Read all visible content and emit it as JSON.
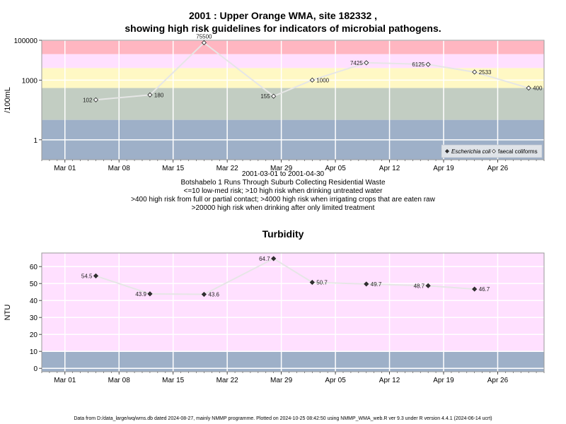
{
  "header": {
    "title_line1": "2001 : Upper Orange WMA, site 182332 ,",
    "title_line2": "showing high risk guidelines for indicators of microbial pathogens."
  },
  "micro_notes": {
    "date_range": "2001-03-01 to 2001-04-30",
    "site_desc": "Botshabelo 1 Runs Through Suburb Collecting Residential Waste",
    "line1": "<=10 low-med risk; >10 high risk when drinking untreated water",
    "line2": ">400 high risk from full or partial contact; >4000 high risk when irrigating crops that are eaten raw",
    "line3": ">20000 high risk when drinking after only limited treatment"
  },
  "turbidity": {
    "title": "Turbidity"
  },
  "footer": {
    "text": "Data from D:/data_large/wq/wms.db dated 2024-08-27, mainly NMMP programme. Plotted on 2024-10-25 08:42:50 using NMMP_WMA_web.R ver 9.3 under R version 4.4.1 (2024-06-14 ucrt)"
  },
  "colors": {
    "band_red": "#ffb6c1",
    "band_pink": "#ffe0ff",
    "band_yellow": "#fff8c4",
    "band_green": "#c2cdc2",
    "band_blue": "#9eb0c8",
    "line": "#e6e6e6"
  },
  "chart_data": [
    {
      "type": "line",
      "scale": "log",
      "ylabel": "/100mL",
      "ylim": [
        0.1,
        100000
      ],
      "yticks": [
        1,
        1000,
        100000
      ],
      "ytick_labels": [
        "1",
        "1000",
        "100000"
      ],
      "xlim": [
        "2001-02-26",
        "2001-05-02"
      ],
      "xticks": [
        "2001-03-01",
        "2001-03-08",
        "2001-03-15",
        "2001-03-22",
        "2001-03-29",
        "2001-04-05",
        "2001-04-12",
        "2001-04-19",
        "2001-04-26"
      ],
      "xtick_labels": [
        "Mar 01",
        "Mar 08",
        "Mar 15",
        "Mar 22",
        "Mar 29",
        "Apr 05",
        "Apr 12",
        "Apr 19",
        "Apr 26"
      ],
      "bands": [
        {
          "from": 20000,
          "to": 100000,
          "color": "band_red"
        },
        {
          "from": 4000,
          "to": 20000,
          "color": "band_pink"
        },
        {
          "from": 400,
          "to": 4000,
          "color": "band_yellow"
        },
        {
          "from": 10,
          "to": 400,
          "color": "band_green"
        },
        {
          "from": 0.1,
          "to": 10,
          "color": "band_blue"
        }
      ],
      "legend": {
        "position": "bottom-right",
        "entries": [
          {
            "name": "Escherichia coli",
            "italic": true,
            "marker": "filled-diamond"
          },
          {
            "name": "faecal coliforms",
            "italic": false,
            "marker": "open-diamond"
          }
        ]
      },
      "series": [
        {
          "name": "faecal coliforms",
          "marker": "open-diamond",
          "points": [
            {
              "x": "2001-03-05",
              "y": 102,
              "label": "102",
              "label_side": "left"
            },
            {
              "x": "2001-03-12",
              "y": 180,
              "label": "180",
              "label_side": "right"
            },
            {
              "x": "2001-03-19",
              "y": 75500,
              "label": "75500",
              "label_side": "above"
            },
            {
              "x": "2001-03-28",
              "y": 155,
              "label": "155",
              "label_side": "left"
            },
            {
              "x": "2001-04-02",
              "y": 1000,
              "label": "1000",
              "label_side": "right"
            },
            {
              "x": "2001-04-09",
              "y": 7425,
              "label": "7425",
              "label_side": "left"
            },
            {
              "x": "2001-04-17",
              "y": 6125,
              "label": "6125",
              "label_side": "left"
            },
            {
              "x": "2001-04-23",
              "y": 2533,
              "label": "2533",
              "label_side": "right"
            },
            {
              "x": "2001-04-30",
              "y": 400,
              "label": "400",
              "label_side": "right"
            }
          ]
        }
      ]
    },
    {
      "type": "line",
      "title": "Turbidity",
      "ylabel": "NTU",
      "ylim": [
        -2,
        68
      ],
      "yticks": [
        0,
        10,
        20,
        30,
        40,
        50,
        60
      ],
      "ytick_labels": [
        "0",
        "10",
        "20",
        "30",
        "40",
        "50",
        "60"
      ],
      "xlim": [
        "2001-02-26",
        "2001-05-02"
      ],
      "xticks": [
        "2001-03-01",
        "2001-03-08",
        "2001-03-15",
        "2001-03-22",
        "2001-03-29",
        "2001-04-05",
        "2001-04-12",
        "2001-04-19",
        "2001-04-26"
      ],
      "xtick_labels": [
        "Mar 01",
        "Mar 08",
        "Mar 15",
        "Mar 22",
        "Mar 29",
        "Apr 05",
        "Apr 12",
        "Apr 19",
        "Apr 26"
      ],
      "bands": [
        {
          "from": 10,
          "to": 68,
          "color": "band_pink"
        },
        {
          "from": -2,
          "to": 10,
          "color": "band_blue"
        }
      ],
      "series": [
        {
          "name": "",
          "marker": "filled-diamond",
          "points": [
            {
              "x": "2001-03-05",
              "y": 54.5,
              "label": "54.5",
              "label_side": "left"
            },
            {
              "x": "2001-03-12",
              "y": 43.9,
              "label": "43.9",
              "label_side": "left"
            },
            {
              "x": "2001-03-19",
              "y": 43.6,
              "label": "43.6",
              "label_side": "right"
            },
            {
              "x": "2001-03-28",
              "y": 64.7,
              "label": "64.7",
              "label_side": "left"
            },
            {
              "x": "2001-04-02",
              "y": 50.7,
              "label": "50.7",
              "label_side": "right"
            },
            {
              "x": "2001-04-09",
              "y": 49.7,
              "label": "49.7",
              "label_side": "right"
            },
            {
              "x": "2001-04-17",
              "y": 48.7,
              "label": "48.7",
              "label_side": "left"
            },
            {
              "x": "2001-04-23",
              "y": 46.7,
              "label": "46.7",
              "label_side": "right"
            }
          ]
        }
      ]
    }
  ]
}
